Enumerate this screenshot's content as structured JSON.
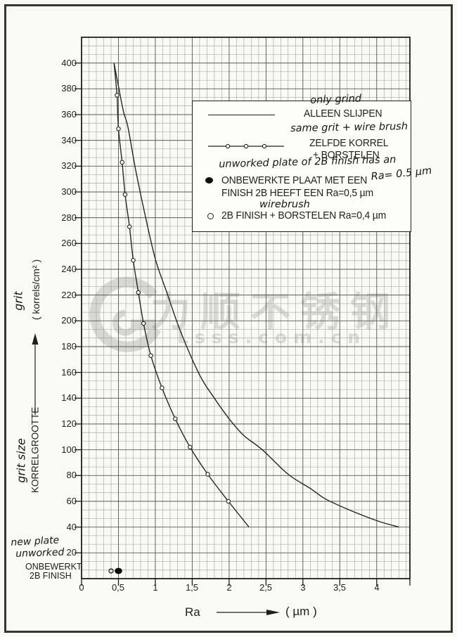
{
  "watermark": {
    "logo_letter": "G",
    "cjk_text": "力顺不锈钢",
    "domain_text": "Lsss.com.cn"
  },
  "y_axis": {
    "hand_label": "grit",
    "unit_label": "( korrels/cm² )",
    "hand_label2": "grit size",
    "print_label2": "KORRELGROOTTE",
    "tick_values": [
      400,
      380,
      360,
      340,
      320,
      300,
      280,
      260,
      240,
      220,
      200,
      180,
      160,
      140,
      120,
      100,
      80,
      60,
      40,
      20
    ]
  },
  "x_axis": {
    "label": "Ra",
    "unit": "( µm )",
    "tick_labels": [
      "0",
      "0,5",
      "1",
      "1,5",
      "2",
      "2,5",
      "3",
      "3,5",
      "4"
    ],
    "tick_values": [
      0,
      0.5,
      1,
      1.5,
      2,
      2.5,
      3,
      3.5,
      4
    ]
  },
  "corner_annotation": {
    "hand_line1": "new plate",
    "hand_line2": "unworked",
    "print_line1": "ONBEWERKT",
    "print_line2": "2B FINISH"
  },
  "legend": {
    "solid": {
      "hand": "only grind",
      "print": "ALLEEN SLIJPEN"
    },
    "circles": {
      "hand": "same grit + wire brush",
      "print_line1": "ZELFDE KORREL",
      "print_line2": "+ BORSTELEN"
    },
    "filled_dot": {
      "hand_above": "unworked plate of 2B finish has an",
      "print_line1": "ONBEWERKTE PLAAT MET EEN",
      "hand_inline": "Ra= 0.5 µm",
      "print_line2": "FINISH 2B HEEFT EEN Ra=0,5 µm",
      "hand_below": "wirebrush"
    },
    "open_dot": {
      "print": "2B FINISH + BORSTELEN Ra=0,4 µm"
    }
  },
  "chart_data": {
    "type": "line",
    "title": "",
    "xlabel": "Ra (µm)",
    "ylabel": "grit / korrelgrootte (korrels/cm²)",
    "xlim": [
      0,
      4.45
    ],
    "ylim": [
      0,
      420
    ],
    "grid": {
      "on": true,
      "x_minor_step": 0.1,
      "x_major_step": 0.5,
      "y_minor_step": 6.667,
      "y_major_step": 20
    },
    "legend_position": "upper-right-inside",
    "series": [
      {
        "name": "ALLEEN SLIJPEN (only grind)",
        "style": "solid-line",
        "points": [
          [
            0.44,
            400
          ],
          [
            0.5,
            382
          ],
          [
            0.57,
            362
          ],
          [
            0.63,
            350
          ],
          [
            0.73,
            318
          ],
          [
            0.85,
            285
          ],
          [
            1.0,
            248
          ],
          [
            1.15,
            223
          ],
          [
            1.34,
            192
          ],
          [
            1.6,
            158
          ],
          [
            1.8,
            140
          ],
          [
            2.0,
            124
          ],
          [
            2.2,
            111
          ],
          [
            2.45,
            100
          ],
          [
            2.8,
            81
          ],
          [
            3.1,
            70
          ],
          [
            3.3,
            62
          ],
          [
            3.6,
            54
          ],
          [
            4.0,
            45
          ],
          [
            4.3,
            40
          ]
        ]
      },
      {
        "name": "ZELFDE KORREL + BORSTELEN (same grit + wire brush)",
        "style": "line-with-open-circles",
        "points": [
          [
            0.44,
            400
          ],
          [
            0.48,
            375
          ],
          [
            0.5,
            349
          ],
          [
            0.55,
            323
          ],
          [
            0.59,
            298
          ],
          [
            0.65,
            273
          ],
          [
            0.7,
            247
          ],
          [
            0.77,
            222
          ],
          [
            0.84,
            198
          ],
          [
            0.94,
            173
          ],
          [
            1.09,
            148
          ],
          [
            1.27,
            124
          ],
          [
            1.47,
            102
          ],
          [
            1.71,
            81
          ],
          [
            1.99,
            60
          ],
          [
            2.27,
            40
          ]
        ],
        "marker_from": 1,
        "marker_to": 14
      }
    ],
    "scatter": [
      {
        "name": "ONBEWERKTE PLAAT / FINISH 2B (Ra=0,5 µm)",
        "marker": "filled-dot",
        "x": 0.5,
        "y": 6
      },
      {
        "name": "2B FINISH + BORSTELEN (Ra=0,4 µm)",
        "marker": "open-dot",
        "x": 0.4,
        "y": 6
      }
    ]
  }
}
